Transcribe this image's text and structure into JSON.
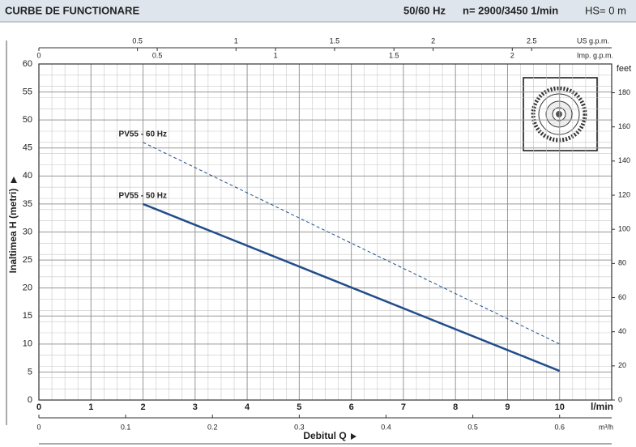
{
  "chart_data": {
    "type": "line",
    "title": "CURBE DE FUNCTIONARE",
    "frequency": "50/60 Hz",
    "speed": "n= 2900/3450  1/min",
    "hs": "HS= 0 m",
    "x": [
      2,
      10
    ],
    "series": [
      {
        "name": "PV55 - 50 Hz",
        "color": "#1f4e8c",
        "dashed": false,
        "values": [
          35,
          5.2
        ]
      },
      {
        "name": "PV55 - 60 Hz",
        "color": "#1f4e8c",
        "dashed": true,
        "values": [
          46,
          10
        ]
      }
    ],
    "xlabel": "l/min",
    "xlim": [
      0,
      11
    ],
    "xticks": [
      0,
      1,
      2,
      3,
      4,
      5,
      6,
      7,
      8,
      9,
      10
    ],
    "ylabel": "Inaltimea  H  (metri)",
    "ylim": [
      0,
      60
    ],
    "yticks": [
      0,
      5,
      10,
      15,
      20,
      25,
      30,
      35,
      40,
      45,
      50,
      55,
      60
    ],
    "y2label": "feet",
    "y2lim": [
      0,
      196.85
    ],
    "y2ticks": [
      0,
      20,
      40,
      60,
      80,
      100,
      120,
      140,
      160,
      180
    ],
    "us_gpm": {
      "label": "US g.p.m.",
      "lim": [
        0,
        2.906
      ],
      "ticks": [
        0.5,
        1,
        1.5,
        2,
        2.5
      ]
    },
    "imp_gpm": {
      "label": "Imp. g.p.m.",
      "lim": [
        0,
        2.42
      ],
      "ticks": [
        0,
        0.5,
        1,
        1.5,
        2
      ]
    },
    "m3h": {
      "label": "m³/h",
      "lim": [
        0,
        0.66
      ],
      "ticks": [
        0,
        0.1,
        0.2,
        0.3,
        0.4,
        0.5,
        0.6
      ]
    },
    "flow_title": "Debitul  Q",
    "grid": true
  }
}
